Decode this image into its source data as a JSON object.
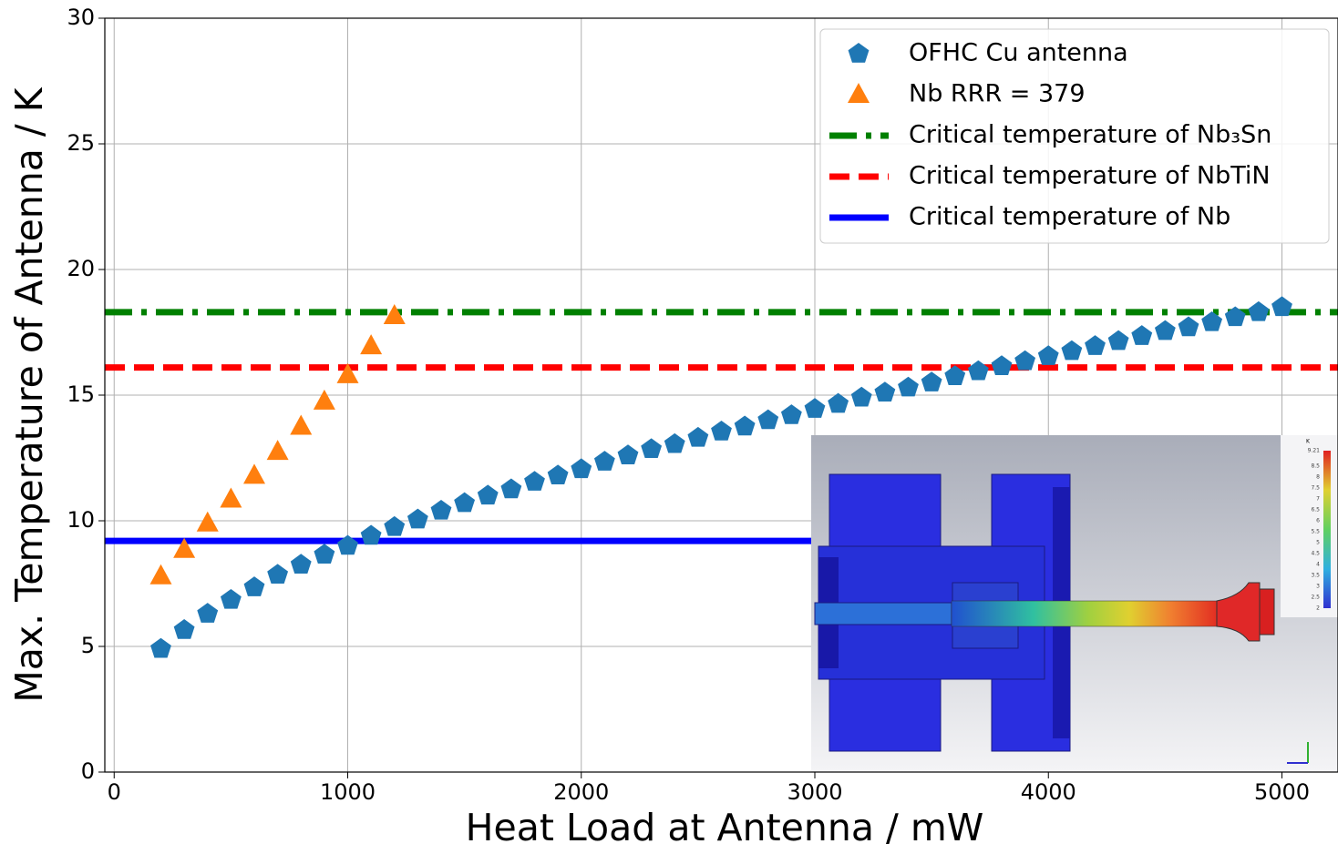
{
  "chart_data": {
    "type": "scatter",
    "xlabel": "Heat Load at Antenna / mW",
    "ylabel": "Max. Temperature of Antenna / K",
    "xlim": [
      -40,
      5240
    ],
    "ylim": [
      0,
      30
    ],
    "xticks": [
      0,
      1000,
      2000,
      3000,
      4000,
      5000
    ],
    "yticks": [
      0,
      5,
      10,
      15,
      20,
      25,
      30
    ],
    "grid": true,
    "legend": "upper right",
    "series": [
      {
        "name": "OFHC Cu antenna",
        "color": "#1f77b4",
        "marker": "pentagon",
        "x": [
          200,
          300,
          400,
          500,
          600,
          700,
          800,
          900,
          1000,
          1100,
          1200,
          1300,
          1400,
          1500,
          1600,
          1700,
          1800,
          1900,
          2000,
          2100,
          2200,
          2300,
          2400,
          2500,
          2600,
          2700,
          2800,
          2900,
          3000,
          3100,
          3200,
          3300,
          3400,
          3500,
          3600,
          3700,
          3800,
          3900,
          4000,
          4100,
          4200,
          4300,
          4400,
          4500,
          4600,
          4700,
          4800,
          4900,
          5000
        ],
        "values": [
          4.9,
          5.65,
          6.3,
          6.85,
          7.35,
          7.85,
          8.25,
          8.65,
          9.0,
          9.4,
          9.75,
          10.05,
          10.4,
          10.7,
          11.0,
          11.25,
          11.55,
          11.8,
          12.05,
          12.35,
          12.6,
          12.85,
          13.05,
          13.3,
          13.55,
          13.75,
          14.0,
          14.2,
          14.45,
          14.65,
          14.9,
          15.1,
          15.3,
          15.5,
          15.75,
          15.95,
          16.15,
          16.35,
          16.55,
          16.75,
          16.95,
          17.15,
          17.35,
          17.55,
          17.7,
          17.9,
          18.1,
          18.3,
          18.5
        ]
      },
      {
        "name": "Nb RRR = 379",
        "color": "#ff7f0e",
        "marker": "triangle",
        "x": [
          200,
          300,
          400,
          500,
          600,
          700,
          800,
          900,
          1000,
          1100,
          1200
        ],
        "values": [
          7.8,
          8.85,
          9.9,
          10.85,
          11.8,
          12.75,
          13.75,
          14.75,
          15.8,
          16.95,
          18.15
        ]
      }
    ],
    "reference_lines": [
      {
        "name": "Critical temperature of Nb₃Sn",
        "color": "#008000",
        "linestyle": "dashdot",
        "value": 18.3
      },
      {
        "name": "Critical temperature of NbTiN",
        "color": "#ff0000",
        "linestyle": "dashed",
        "value": 16.1
      },
      {
        "name": "Critical temperature of Nb",
        "color": "#0000ff",
        "linestyle": "solid",
        "value": 9.2
      }
    ],
    "inset_colorbar": {
      "unit": "K",
      "ticks": [
        9.21,
        8.5,
        8,
        7.5,
        7,
        6.5,
        6,
        5.5,
        5,
        4.5,
        4,
        3.5,
        3,
        2.5,
        2
      ]
    }
  }
}
